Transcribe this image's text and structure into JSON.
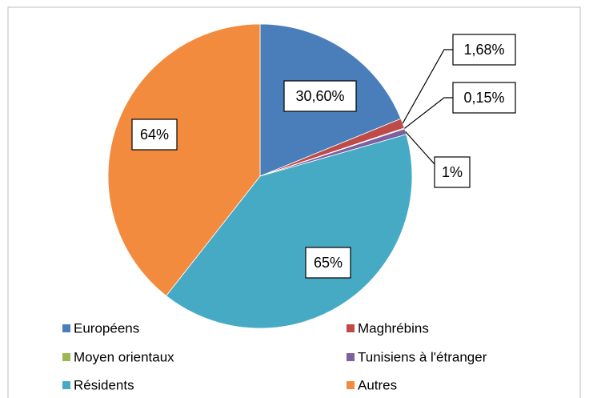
{
  "chart_data": {
    "type": "pie",
    "categories": [
      "Européens",
      "Maghrébins",
      "Moyen orientaux",
      "Tunisiens à l'étranger",
      "Résidents",
      "Autres"
    ],
    "values": [
      30.6,
      1.68,
      0.15,
      1,
      65,
      64
    ],
    "value_labels": [
      "30,60%",
      "1,68%",
      "0,15%",
      "1%",
      "65%",
      "64%"
    ],
    "colors": [
      "#4a7ebb",
      "#be4b48",
      "#98b954",
      "#7d60a0",
      "#46aac5",
      "#f38b3f"
    ],
    "legend": "bottom"
  }
}
